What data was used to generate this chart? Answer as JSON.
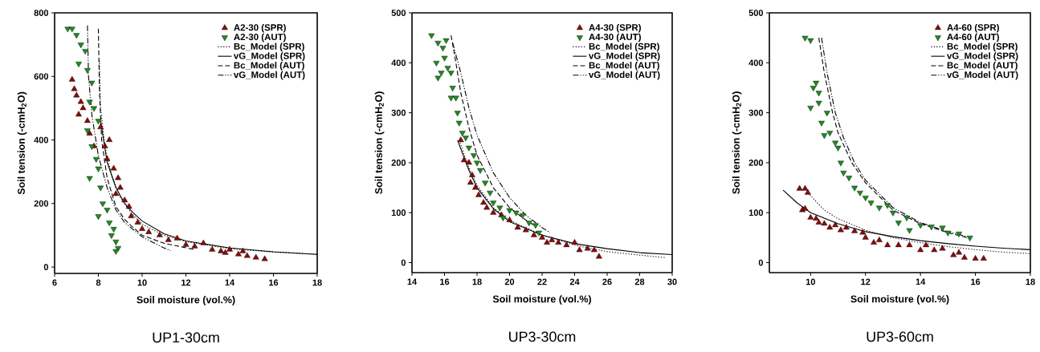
{
  "chart_data": [
    {
      "type": "scatter",
      "title": "UP1-30cm",
      "xlabel": "Soil moisture (vol.%)",
      "ylabel": "Soil tension (-cmH$_{2}$O)",
      "xlim": [
        6,
        18
      ],
      "xticks": [
        6,
        8,
        10,
        12,
        14,
        16,
        18
      ],
      "ylim": [
        -20,
        800
      ],
      "yticks": [
        0,
        200,
        400,
        600,
        800
      ],
      "legend": "top right",
      "grid": false,
      "series": [
        {
          "name": "A2-30 (SPR)",
          "marker": "triangle",
          "color": "#8b0a0a",
          "x": [
            6.8,
            6.9,
            7.0,
            7.2,
            7.3,
            7.1,
            7.5,
            7.6,
            7.8,
            8.1,
            8.3,
            8.5,
            8.4,
            8.7,
            8.9,
            9.0,
            8.8,
            9.2,
            9.4,
            9.5,
            9.8,
            10.0,
            10.3,
            10.8,
            11.2,
            11.6,
            12.0,
            12.4,
            12.8,
            13.2,
            13.6,
            14.0,
            14.4,
            14.8,
            15.2,
            15.6,
            14.6,
            13.8
          ],
          "values": [
            590,
            560,
            540,
            520,
            500,
            480,
            460,
            420,
            380,
            440,
            380,
            400,
            340,
            310,
            280,
            250,
            230,
            210,
            190,
            160,
            140,
            120,
            110,
            100,
            85,
            90,
            70,
            65,
            75,
            55,
            50,
            55,
            40,
            35,
            30,
            25,
            50,
            45
          ]
        },
        {
          "name": "A2-30 (AUT)",
          "marker": "triangle-down",
          "color": "#1e8c1e",
          "x": [
            6.6,
            6.8,
            7.0,
            7.2,
            7.4,
            7.1,
            7.5,
            7.7,
            7.6,
            7.8,
            8.0,
            7.5,
            7.7,
            7.9,
            7.6,
            8.0,
            8.1,
            8.2,
            8.0,
            8.4,
            8.5,
            8.7,
            8.6,
            8.8,
            8.9,
            8.8
          ],
          "values": [
            750,
            750,
            730,
            700,
            680,
            640,
            620,
            580,
            520,
            500,
            460,
            430,
            380,
            340,
            280,
            310,
            250,
            200,
            160,
            180,
            140,
            120,
            100,
            80,
            60,
            50
          ]
        },
        {
          "name": "Bc_Model (SPR)",
          "type": "line",
          "marker": "none",
          "line_style": "dotted",
          "color": "#000000",
          "x": [
            8.05,
            8.1,
            8.3,
            8.6,
            9,
            9.5,
            10,
            11,
            12,
            14,
            16,
            18
          ],
          "values": [
            650,
            500,
            380,
            290,
            220,
            170,
            135,
            100,
            80,
            58,
            47,
            40
          ]
        },
        {
          "name": "vG_Model (SPR)",
          "type": "line",
          "marker": "none",
          "line_style": "solid",
          "color": "#000000",
          "x": [
            8.1,
            8.4,
            8.8,
            9.2,
            9.6,
            10,
            11,
            12,
            14,
            16,
            18
          ],
          "values": [
            460,
            330,
            250,
            200,
            170,
            145,
            105,
            82,
            60,
            48,
            40
          ]
        },
        {
          "name": "Bc_Model (AUT)",
          "type": "line",
          "marker": "none",
          "line_style": "dashed",
          "color": "#000000",
          "x": [
            8.0,
            8.05,
            8.15,
            8.4,
            8.8,
            9.2,
            9.5,
            10,
            11,
            12.4
          ],
          "values": [
            750,
            550,
            400,
            280,
            190,
            150,
            130,
            100,
            75,
            55
          ]
        },
        {
          "name": "vG_Model (AUT)",
          "type": "line",
          "marker": "none",
          "line_style": "dashdotdotted",
          "color": "#000000",
          "x": [
            7.5,
            7.55,
            7.7,
            8.0,
            8.4,
            8.8,
            9.2,
            10,
            11,
            11.3
          ],
          "values": [
            760,
            600,
            480,
            350,
            250,
            180,
            140,
            95,
            60,
            52
          ]
        }
      ]
    },
    {
      "type": "scatter",
      "title": "UP3-30cm",
      "xlabel": "Soil moisture (vol.%)",
      "ylabel": "Soil tension (-cmH$_{2}$O)",
      "xlim": [
        14,
        30
      ],
      "xticks": [
        14,
        16,
        18,
        20,
        22,
        24,
        26,
        28,
        30
      ],
      "ylim": [
        -20,
        500
      ],
      "yticks": [
        0,
        100,
        200,
        300,
        400,
        500
      ],
      "legend": "top right",
      "grid": false,
      "series": [
        {
          "name": "A4-30 (SPR)",
          "marker": "triangle",
          "color": "#8b0a0a",
          "x": [
            17.0,
            17.2,
            17.5,
            17.7,
            17.6,
            17.9,
            18.1,
            18.4,
            18.6,
            19.0,
            19.5,
            20.0,
            20.5,
            21.0,
            21.5,
            22.0,
            22.3,
            22.6,
            23.0,
            23.5,
            24.0,
            24.3,
            24.8,
            25.2,
            25.5
          ],
          "values": [
            245,
            205,
            200,
            175,
            160,
            150,
            135,
            120,
            110,
            100,
            95,
            85,
            70,
            65,
            55,
            50,
            40,
            45,
            40,
            35,
            40,
            25,
            28,
            25,
            12
          ]
        },
        {
          "name": "A4-30 (AUT)",
          "marker": "triangle-down",
          "color": "#1e8c1e",
          "x": [
            15.2,
            15.6,
            15.9,
            16.1,
            15.5,
            15.6,
            15.8,
            16.0,
            16.2,
            16.4,
            16.5,
            16.4,
            16.7,
            16.8,
            16.9,
            17.1,
            17.3,
            17.5,
            17.8,
            18.0,
            18.2,
            18.5,
            18.8,
            19.0,
            19.4,
            19.6,
            20.0,
            20.4,
            20.8,
            21.2,
            21.6,
            21.8
          ],
          "values": [
            455,
            440,
            430,
            445,
            400,
            370,
            380,
            410,
            390,
            380,
            350,
            330,
            330,
            300,
            280,
            260,
            250,
            230,
            215,
            200,
            185,
            160,
            140,
            120,
            110,
            90,
            105,
            100,
            95,
            80,
            75,
            60
          ]
        },
        {
          "name": "Bc_Model (SPR)",
          "type": "line",
          "marker": "none",
          "line_style": "dotted",
          "color": "#000000",
          "x": [
            16.9,
            17.5,
            18,
            19,
            20,
            22,
            24,
            26,
            28,
            29.6
          ],
          "values": [
            245,
            190,
            155,
            110,
            85,
            55,
            35,
            22,
            15,
            10
          ]
        },
        {
          "name": "vG_Model (SPR)",
          "type": "line",
          "marker": "none",
          "line_style": "solid",
          "color": "#000000",
          "x": [
            16.8,
            17.5,
            18,
            19,
            20,
            22,
            24,
            26,
            28,
            30
          ],
          "values": [
            245,
            185,
            150,
            108,
            82,
            55,
            38,
            28,
            20,
            16
          ]
        },
        {
          "name": "Bc_Model (AUT)",
          "type": "line",
          "marker": "none",
          "line_style": "dashed",
          "color": "#000000",
          "x": [
            16.4,
            16.6,
            17,
            17.5,
            18,
            19,
            20,
            21,
            21.5
          ],
          "values": [
            455,
            420,
            340,
            270,
            215,
            150,
            110,
            85,
            75
          ]
        },
        {
          "name": "vG_Model (AUT)",
          "type": "line",
          "marker": "none",
          "line_style": "dashdotdotted",
          "color": "#000000",
          "x": [
            16.5,
            17,
            17.5,
            18,
            19,
            20,
            21,
            22,
            22.5
          ],
          "values": [
            440,
            380,
            310,
            255,
            180,
            130,
            95,
            70,
            60
          ]
        }
      ]
    },
    {
      "type": "scatter",
      "title": "UP3-60cm",
      "xlabel": "Soil moisture (vol.%)",
      "ylabel": "Soil tension (-cmH$_{2}$O)",
      "xlim": [
        8.5,
        18
      ],
      "xticks": [
        10,
        12,
        14,
        16,
        18
      ],
      "ylim": [
        -20,
        500
      ],
      "yticks": [
        0,
        100,
        200,
        300,
        400,
        500
      ],
      "legend": "top right",
      "grid": false,
      "series": [
        {
          "name": "A4-60 (SPR)",
          "marker": "triangle",
          "color": "#8b0a0a",
          "x": [
            9.6,
            9.8,
            9.9,
            9.7,
            9.8,
            10.0,
            10.2,
            10.3,
            10.5,
            10.7,
            10.9,
            11.1,
            11.3,
            11.6,
            11.9,
            12.0,
            12.3,
            12.5,
            12.8,
            13.2,
            13.6,
            14.0,
            14.2,
            14.5,
            14.8,
            15.2,
            15.4,
            15.6,
            16.0,
            16.3
          ],
          "values": [
            148,
            148,
            140,
            105,
            108,
            90,
            88,
            80,
            78,
            70,
            75,
            65,
            70,
            63,
            60,
            50,
            40,
            45,
            35,
            35,
            35,
            25,
            35,
            25,
            28,
            15,
            20,
            10,
            8,
            8
          ]
        },
        {
          "name": "A4-60 (AUT)",
          "marker": "triangle-down",
          "color": "#1e8c1e",
          "x": [
            9.8,
            10.0,
            10.1,
            10.2,
            10.3,
            10.0,
            10.3,
            10.4,
            10.6,
            10.5,
            10.7,
            10.9,
            11.0,
            11.1,
            11.2,
            11.4,
            11.6,
            11.8,
            12.0,
            12.2,
            12.5,
            12.8,
            13.0,
            13.2,
            13.5,
            13.6,
            14.0,
            14.4,
            14.8,
            15.0,
            15.4,
            15.8
          ],
          "values": [
            450,
            445,
            350,
            360,
            340,
            310,
            320,
            280,
            300,
            255,
            260,
            240,
            230,
            200,
            180,
            170,
            150,
            140,
            130,
            120,
            110,
            115,
            100,
            80,
            90,
            65,
            75,
            72,
            70,
            60,
            58,
            50
          ]
        },
        {
          "name": "Bc_Model (SPR)",
          "type": "line",
          "marker": "none",
          "line_style": "dotted",
          "color": "#000000",
          "x": [
            9.9,
            10.5,
            11,
            12,
            13,
            14,
            15,
            16,
            17,
            18
          ],
          "values": [
            140,
            105,
            88,
            65,
            50,
            40,
            32,
            26,
            21,
            18
          ]
        },
        {
          "name": "vG_Model (SPR)",
          "type": "line",
          "marker": "none",
          "line_style": "solid",
          "color": "#000000",
          "x": [
            9.0,
            9.5,
            10,
            11,
            12,
            13,
            14,
            15,
            16,
            17,
            18
          ],
          "values": [
            145,
            120,
            100,
            78,
            62,
            52,
            44,
            38,
            33,
            29,
            26
          ]
        },
        {
          "name": "Bc_Model (AUT)",
          "type": "line",
          "marker": "none",
          "line_style": "dashed",
          "color": "#000000",
          "x": [
            10.3,
            10.5,
            10.8,
            11,
            11.5,
            12,
            13,
            14,
            15,
            15.7
          ],
          "values": [
            450,
            380,
            300,
            260,
            200,
            160,
            105,
            78,
            60,
            50
          ]
        },
        {
          "name": "vG_Model (AUT)",
          "type": "line",
          "marker": "none",
          "line_style": "dashdotdotted",
          "color": "#000000",
          "x": [
            10.4,
            10.6,
            10.9,
            11.2,
            11.6,
            12,
            13,
            14,
            15,
            15.7
          ],
          "values": [
            450,
            380,
            300,
            250,
            200,
            165,
            110,
            80,
            62,
            52
          ]
        }
      ]
    }
  ]
}
